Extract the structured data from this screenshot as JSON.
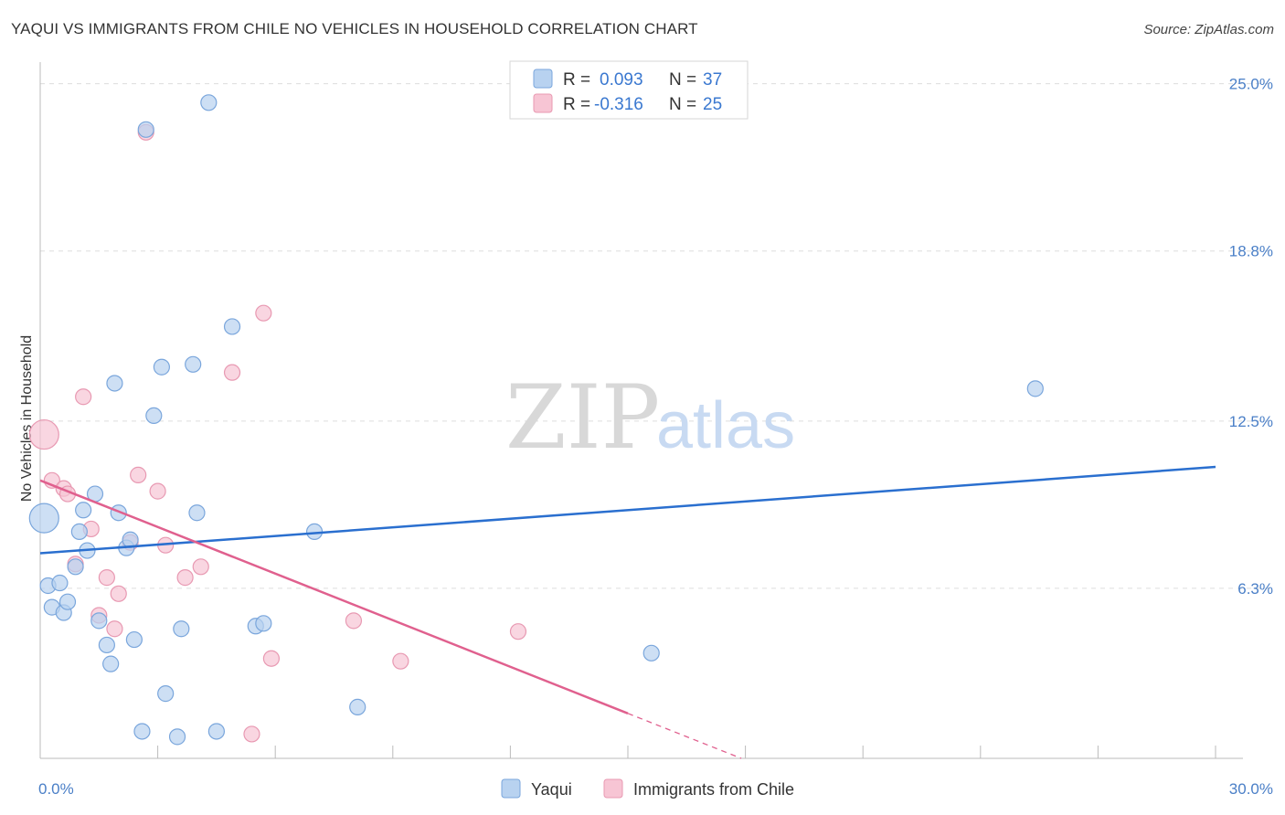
{
  "title": "YAQUI VS IMMIGRANTS FROM CHILE NO VEHICLES IN HOUSEHOLD CORRELATION CHART",
  "source": "Source: ZipAtlas.com",
  "watermark": {
    "zip": "ZIP",
    "atlas": "atlas"
  },
  "colors": {
    "blue_fill": "#b8d2f0",
    "blue_stroke": "#7aa6dc",
    "blue_line": "#2a6fcf",
    "pink_fill": "#f7c5d4",
    "pink_stroke": "#e899b2",
    "pink_line": "#e0608e",
    "grid": "#dddddd",
    "axis_text": "#4a7fc7"
  },
  "legend": {
    "rows": [
      {
        "r_label": "R = ",
        "r_value": "0.093",
        "n_label": "N = ",
        "n_value": "37"
      },
      {
        "r_label": "R = ",
        "r_value": "-0.316",
        "n_label": "N = ",
        "n_value": "25"
      }
    ]
  },
  "chart_data": {
    "type": "scatter",
    "title": "YAQUI VS IMMIGRANTS FROM CHILE NO VEHICLES IN HOUSEHOLD CORRELATION CHART",
    "xlabel": "",
    "ylabel": "No Vehicles in Household",
    "xlim": [
      0,
      30
    ],
    "ylim": [
      0,
      25.8
    ],
    "x_tick_labels": [
      "0.0%",
      "30.0%"
    ],
    "y_ticks": [
      6.3,
      12.5,
      18.8,
      25.0
    ],
    "y_tick_labels": [
      "6.3%",
      "12.5%",
      "18.8%",
      "25.0%"
    ],
    "x_minor_ticks": [
      0,
      3,
      6,
      9,
      12,
      15,
      18,
      21,
      24,
      27,
      30
    ],
    "grid": true,
    "series": [
      {
        "name": "Yaqui",
        "color": "blue",
        "r": 0.093,
        "n": 37,
        "trend": {
          "x0": 0,
          "y0": 7.6,
          "x1": 30,
          "y1": 10.8,
          "dash_from": null
        },
        "points": [
          {
            "x": 0.1,
            "y": 8.9,
            "big": true
          },
          {
            "x": 0.2,
            "y": 6.4
          },
          {
            "x": 0.3,
            "y": 5.6
          },
          {
            "x": 0.5,
            "y": 6.5
          },
          {
            "x": 0.6,
            "y": 5.4
          },
          {
            "x": 0.7,
            "y": 5.8
          },
          {
            "x": 0.9,
            "y": 7.1
          },
          {
            "x": 1.0,
            "y": 8.4
          },
          {
            "x": 1.1,
            "y": 9.2
          },
          {
            "x": 1.2,
            "y": 7.7
          },
          {
            "x": 1.4,
            "y": 9.8
          },
          {
            "x": 1.5,
            "y": 5.1
          },
          {
            "x": 1.7,
            "y": 4.2
          },
          {
            "x": 1.8,
            "y": 3.5
          },
          {
            "x": 1.9,
            "y": 13.9
          },
          {
            "x": 2.0,
            "y": 9.1
          },
          {
            "x": 2.2,
            "y": 7.8
          },
          {
            "x": 2.3,
            "y": 8.1
          },
          {
            "x": 2.4,
            "y": 4.4
          },
          {
            "x": 2.6,
            "y": 1.0
          },
          {
            "x": 2.7,
            "y": 23.3
          },
          {
            "x": 2.9,
            "y": 12.7
          },
          {
            "x": 3.1,
            "y": 14.5
          },
          {
            "x": 3.2,
            "y": 2.4
          },
          {
            "x": 3.5,
            "y": 0.8
          },
          {
            "x": 3.6,
            "y": 4.8
          },
          {
            "x": 3.9,
            "y": 14.6
          },
          {
            "x": 4.0,
            "y": 9.1
          },
          {
            "x": 4.3,
            "y": 24.3
          },
          {
            "x": 4.5,
            "y": 1.0
          },
          {
            "x": 4.9,
            "y": 16.0
          },
          {
            "x": 5.5,
            "y": 4.9
          },
          {
            "x": 5.7,
            "y": 5.0
          },
          {
            "x": 7.0,
            "y": 8.4
          },
          {
            "x": 8.1,
            "y": 1.9
          },
          {
            "x": 15.6,
            "y": 3.9
          },
          {
            "x": 25.4,
            "y": 13.7
          }
        ]
      },
      {
        "name": "Immigrants from Chile",
        "color": "pink",
        "r": -0.316,
        "n": 25,
        "trend": {
          "x0": 0,
          "y0": 10.3,
          "x1": 20.5,
          "y1": -1.5,
          "dash_from": 15.0
        },
        "points": [
          {
            "x": 0.1,
            "y": 12.0,
            "big": true
          },
          {
            "x": 0.3,
            "y": 10.3
          },
          {
            "x": 0.6,
            "y": 10.0
          },
          {
            "x": 0.7,
            "y": 9.8
          },
          {
            "x": 0.9,
            "y": 7.2
          },
          {
            "x": 1.1,
            "y": 13.4
          },
          {
            "x": 1.3,
            "y": 8.5
          },
          {
            "x": 1.5,
            "y": 5.3
          },
          {
            "x": 1.7,
            "y": 6.7
          },
          {
            "x": 1.9,
            "y": 4.8
          },
          {
            "x": 2.0,
            "y": 6.1
          },
          {
            "x": 2.3,
            "y": 8.0
          },
          {
            "x": 2.5,
            "y": 10.5
          },
          {
            "x": 2.7,
            "y": 23.2
          },
          {
            "x": 3.0,
            "y": 9.9
          },
          {
            "x": 3.2,
            "y": 7.9
          },
          {
            "x": 3.7,
            "y": 6.7
          },
          {
            "x": 4.1,
            "y": 7.1
          },
          {
            "x": 4.9,
            "y": 14.3
          },
          {
            "x": 5.4,
            "y": 0.9
          },
          {
            "x": 5.7,
            "y": 16.5
          },
          {
            "x": 5.9,
            "y": 3.7
          },
          {
            "x": 8.0,
            "y": 5.1
          },
          {
            "x": 9.2,
            "y": 3.6
          },
          {
            "x": 12.2,
            "y": 4.7
          }
        ]
      }
    ]
  }
}
